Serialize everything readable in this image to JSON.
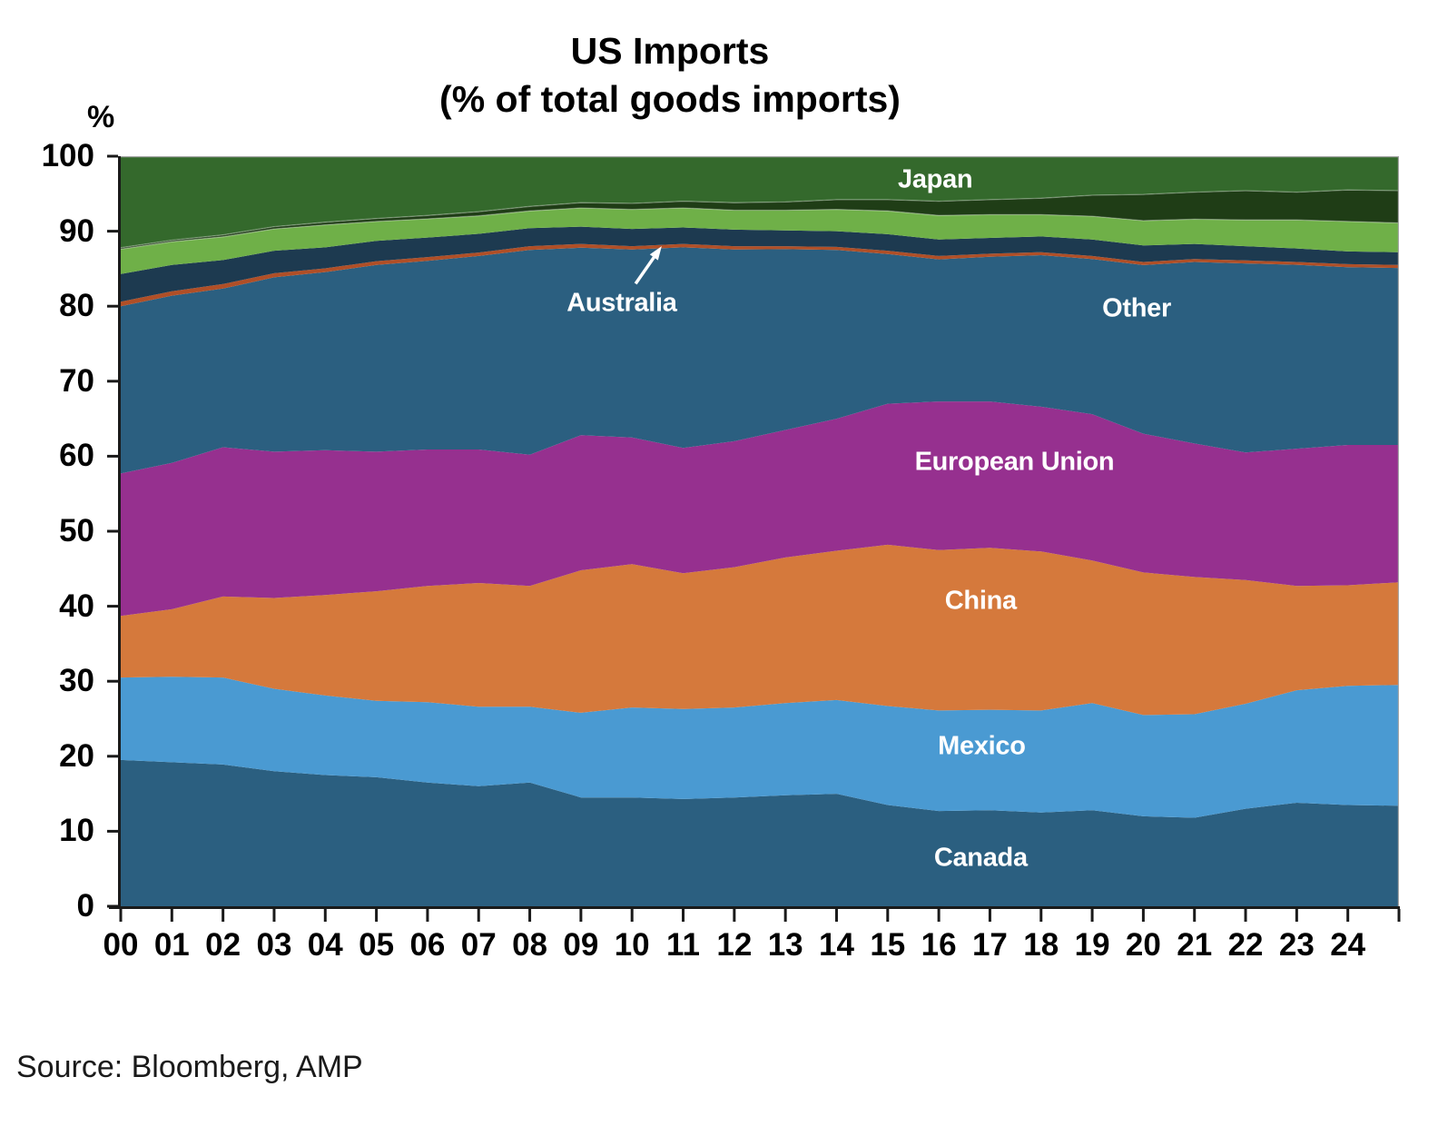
{
  "title": {
    "line1": "US Imports",
    "line2": "(% of total goods imports)"
  },
  "y_axis": {
    "unit_label": "%",
    "ticks": [
      100,
      90,
      80,
      70,
      60,
      50,
      40,
      30,
      20,
      10,
      0
    ]
  },
  "x_axis": {
    "labels": [
      "00",
      "01",
      "02",
      "03",
      "04",
      "05",
      "06",
      "07",
      "08",
      "09",
      "10",
      "11",
      "12",
      "13",
      "14",
      "15",
      "16",
      "17",
      "18",
      "19",
      "20",
      "21",
      "22",
      "23",
      "24"
    ]
  },
  "source": "Source: Bloomberg, AMP",
  "chart_data": {
    "type": "area",
    "stacked": true,
    "title": "US Imports (% of total goods imports)",
    "ylabel": "%",
    "ylim": [
      0,
      100
    ],
    "grid": false,
    "legend": "labels drawn inside bands",
    "x": [
      2000,
      2001,
      2002,
      2003,
      2004,
      2005,
      2006,
      2007,
      2008,
      2009,
      2010,
      2011,
      2012,
      2013,
      2014,
      2015,
      2016,
      2017,
      2018,
      2019,
      2020,
      2021,
      2022,
      2023,
      2024,
      2025
    ],
    "series": [
      {
        "name": "Canada",
        "color": "#2b5f80",
        "values": [
          19.5,
          19.2,
          18.9,
          18.0,
          17.5,
          17.2,
          16.5,
          16.0,
          16.5,
          14.5,
          14.5,
          14.3,
          14.5,
          14.8,
          15.0,
          13.5,
          12.7,
          12.8,
          12.5,
          12.8,
          12.0,
          11.8,
          13.0,
          13.8,
          13.5,
          13.4
        ]
      },
      {
        "name": "Mexico",
        "color": "#4a9ad2",
        "values": [
          11.0,
          11.4,
          11.6,
          11.0,
          10.6,
          10.2,
          10.7,
          10.6,
          10.1,
          11.3,
          12.0,
          12.0,
          12.0,
          12.3,
          12.5,
          13.2,
          13.4,
          13.4,
          13.6,
          14.3,
          13.5,
          13.8,
          14.0,
          15.0,
          15.9,
          16.1
        ]
      },
      {
        "name": "China",
        "color": "#d5793c",
        "values": [
          8.2,
          9.0,
          10.8,
          12.1,
          13.4,
          14.6,
          15.5,
          16.5,
          16.1,
          19.0,
          19.1,
          18.1,
          18.7,
          19.4,
          19.9,
          21.5,
          21.4,
          21.6,
          21.2,
          19.0,
          19.0,
          18.3,
          16.5,
          13.9,
          13.4,
          13.7
        ]
      },
      {
        "name": "European Union",
        "color": "#96308f",
        "values": [
          19.0,
          19.5,
          19.9,
          19.5,
          19.3,
          18.6,
          18.2,
          17.8,
          17.5,
          18.0,
          16.9,
          16.7,
          16.8,
          17.0,
          17.6,
          18.8,
          19.8,
          19.5,
          19.3,
          19.5,
          18.5,
          17.8,
          17.0,
          18.3,
          18.7,
          18.3
        ]
      },
      {
        "name": "Other",
        "color": "#2b5f80",
        "values": [
          22.3,
          22.3,
          21.15,
          23.25,
          23.75,
          24.9,
          25.15,
          25.8,
          27.3,
          25.0,
          25.05,
          26.75,
          25.55,
          24.1,
          22.5,
          19.95,
          18.95,
          19.28,
          20.2,
          20.7,
          22.48,
          24.2,
          25.2,
          24.52,
          23.7,
          23.6
        ]
      },
      {
        "name": "Australia",
        "color": "#b04f27",
        "values": [
          0.6,
          0.6,
          0.6,
          0.55,
          0.5,
          0.5,
          0.5,
          0.45,
          0.5,
          0.5,
          0.45,
          0.45,
          0.45,
          0.4,
          0.4,
          0.45,
          0.45,
          0.42,
          0.4,
          0.4,
          0.42,
          0.4,
          0.4,
          0.38,
          0.4,
          0.4
        ]
      },
      {
        "name": "unlabeled-dark-navy-band",
        "color": "#1d3a50",
        "values": [
          3.7,
          3.5,
          3.2,
          3.0,
          2.8,
          2.7,
          2.6,
          2.5,
          2.4,
          2.3,
          2.3,
          2.2,
          2.2,
          2.1,
          2.1,
          2.2,
          2.2,
          2.1,
          2.1,
          2.2,
          2.2,
          2.0,
          1.9,
          1.8,
          1.7,
          1.7
        ]
      },
      {
        "name": "unlabeled-light-green-band",
        "color": "#6fb048",
        "values": [
          3.3,
          3.1,
          3.1,
          2.9,
          3.0,
          2.6,
          2.5,
          2.4,
          2.3,
          2.5,
          2.6,
          2.6,
          2.6,
          2.7,
          2.9,
          3.1,
          3.2,
          3.1,
          2.9,
          3.1,
          3.3,
          3.3,
          3.5,
          3.8,
          4.0,
          3.9
        ]
      },
      {
        "name": "unlabeled-dark-green-band",
        "color": "#1f3d16",
        "values": [
          0.2,
          0.2,
          0.25,
          0.3,
          0.35,
          0.4,
          0.45,
          0.55,
          0.6,
          0.7,
          0.8,
          0.9,
          1.0,
          1.1,
          1.3,
          1.5,
          1.9,
          2.0,
          2.2,
          2.8,
          3.5,
          3.6,
          3.9,
          3.7,
          4.2,
          4.3
        ]
      },
      {
        "name": "Japan",
        "color": "#34692c",
        "values": [
          12.2,
          11.2,
          10.5,
          9.4,
          8.8,
          8.3,
          7.9,
          7.4,
          6.7,
          6.2,
          6.3,
          6.0,
          6.2,
          6.1,
          5.8,
          5.8,
          6.0,
          5.8,
          5.6,
          5.2,
          5.1,
          4.8,
          4.6,
          4.8,
          4.5,
          4.6
        ]
      }
    ],
    "boundary_highlights": [
      7,
      8
    ],
    "annotations": [
      {
        "text": "Japan",
        "x": 15.93,
        "y": 96.9
      },
      {
        "text": "Australia",
        "x": 9.8,
        "y": 80.4
      },
      {
        "text": "Other",
        "x": 19.87,
        "y": 79.7
      },
      {
        "text": "European Union",
        "x": 17.48,
        "y": 59.2
      },
      {
        "text": "China",
        "x": 16.82,
        "y": 40.7
      },
      {
        "text": "Mexico",
        "x": 16.84,
        "y": 21.3
      },
      {
        "text": "Canada",
        "x": 16.82,
        "y": 6.4
      }
    ],
    "arrow": {
      "tail_x": 10.07,
      "tail_y": 83.0,
      "head_x": 10.58,
      "head_y": 88.0,
      "color": "#ffffff"
    }
  },
  "colors": {
    "axis": "#1a1a1a",
    "plot_border": "#a6a6a6",
    "background": "#ffffff",
    "band_label_text": "#ffffff"
  }
}
